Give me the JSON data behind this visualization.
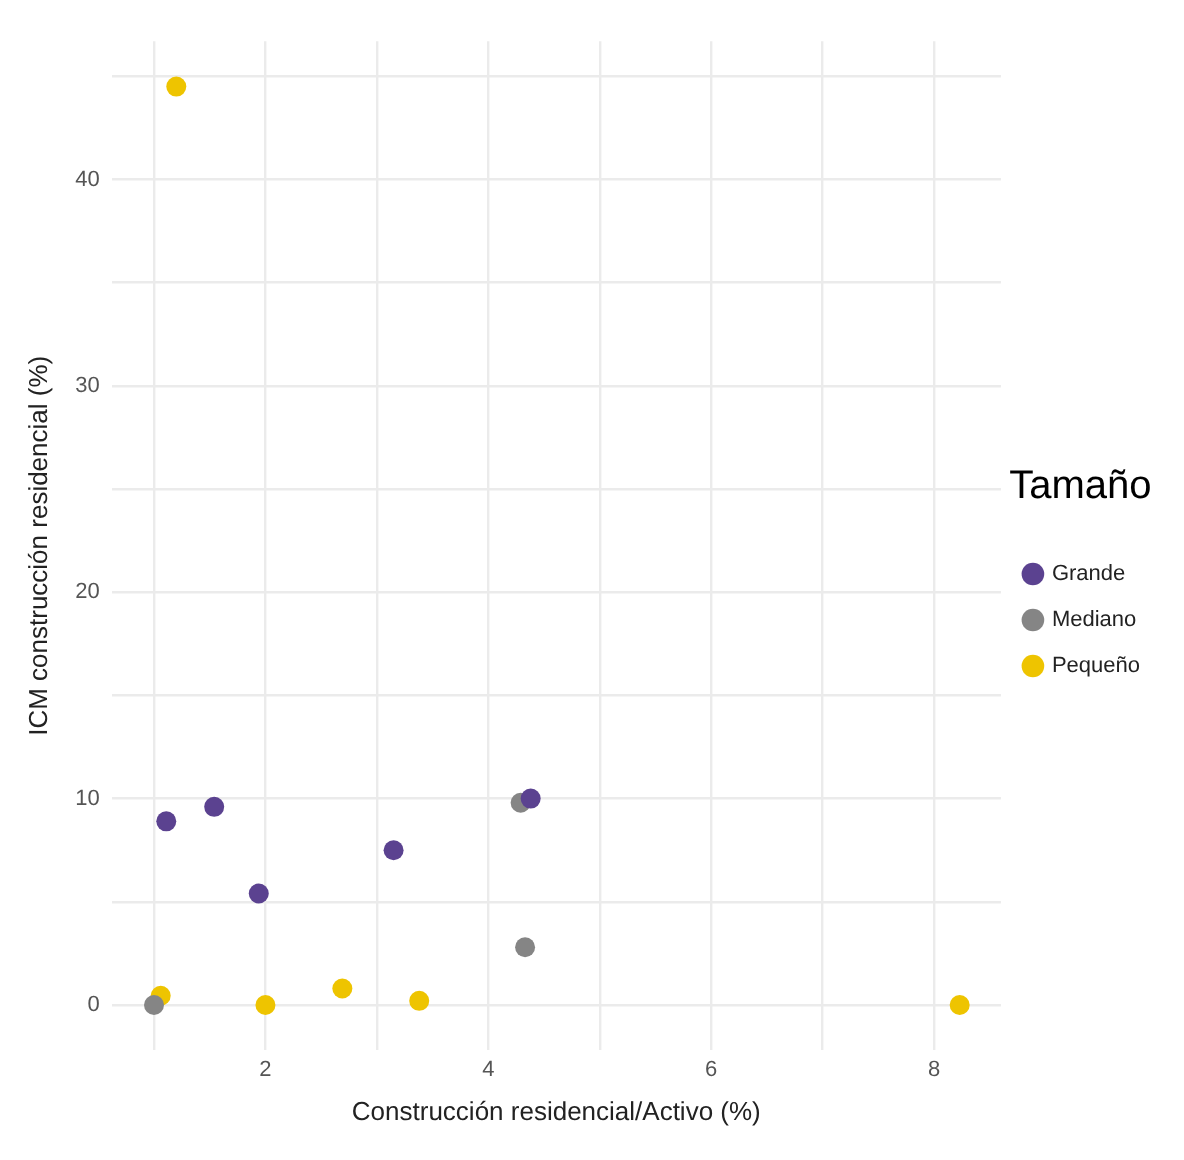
{
  "chart_data": {
    "type": "scatter",
    "xlabel": "Construcción residencial/Activo (%)",
    "ylabel": "ICM construcción residencial (%)",
    "legend_title": "Tamaño",
    "legend": "right",
    "grid": true,
    "marker": "circle",
    "xlim": [
      0.62,
      8.6
    ],
    "xticks": [
      {
        "value": 1,
        "label": null
      },
      2,
      {
        "value": 3,
        "label": null
      },
      4,
      {
        "value": 5,
        "label": null
      },
      6,
      {
        "value": 7,
        "label": null
      },
      8
    ],
    "ylim": [
      -2.2,
      46.7
    ],
    "yticks": [
      0,
      {
        "value": 5,
        "label": null
      },
      10,
      {
        "value": 15,
        "label": null
      },
      20,
      {
        "value": 25,
        "label": null
      },
      30,
      {
        "value": 35,
        "label": null
      },
      40,
      {
        "value": 45,
        "label": null
      }
    ],
    "series": [
      {
        "name": "Grande",
        "color": "#5b4290",
        "x": [
          1.11,
          1.54,
          1.94,
          3.15,
          4.38
        ],
        "values": [
          8.9,
          9.6,
          5.4,
          7.5,
          10.0
        ]
      },
      {
        "name": "Mediano",
        "color": "#858585",
        "x": [
          1.0,
          4.29,
          4.33
        ],
        "values": [
          0.0,
          9.8,
          2.8
        ]
      },
      {
        "name": "Pequeño",
        "color": "#eec400",
        "x": [
          1.2,
          1.06,
          2.0,
          2.69,
          3.38,
          8.23
        ],
        "values": [
          44.5,
          0.45,
          0.0,
          0.8,
          0.2,
          0.0
        ]
      }
    ]
  }
}
